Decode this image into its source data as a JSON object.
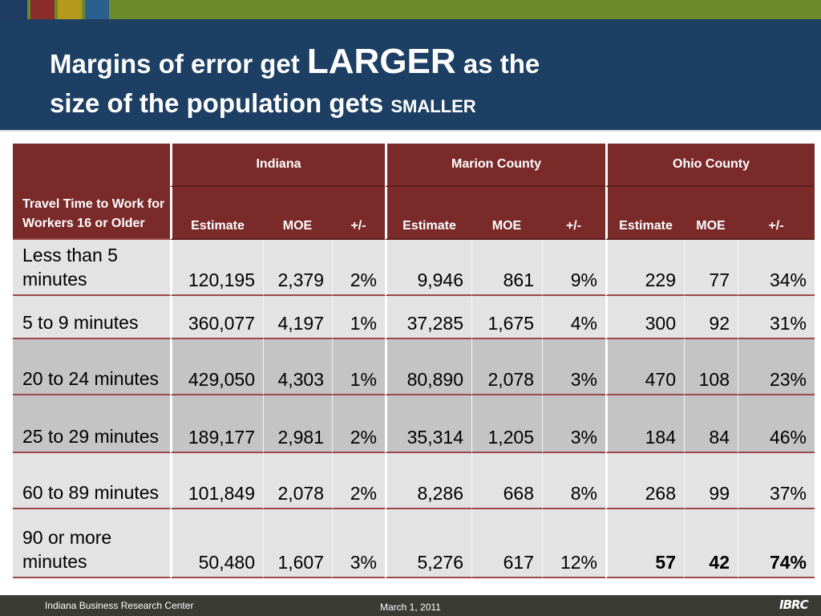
{
  "title": {
    "part1": "Margins of error get ",
    "emph_large": "LARGER",
    "part2": " as the",
    "part3": "size of the population gets ",
    "emph_small": "SMALLER"
  },
  "table": {
    "corner_label": "Travel Time to Work for Workers 16 or Older",
    "groups": [
      "Indiana",
      "Marion County",
      "Ohio County"
    ],
    "subheaders": [
      "Estimate",
      "MOE",
      "+/-"
    ],
    "rows": [
      {
        "label": "Less than 5 minutes",
        "shade": "light",
        "values": [
          "120,195",
          "2,379",
          "2%",
          "9,946",
          "861",
          "9%",
          "229",
          "77",
          "34%"
        ]
      },
      {
        "label": "5 to 9 minutes",
        "shade": "light",
        "values": [
          "360,077",
          "4,197",
          "1%",
          "37,285",
          "1,675",
          "4%",
          "300",
          "92",
          "31%"
        ]
      },
      {
        "label": "20 to 24 minutes",
        "shade": "dark",
        "values": [
          "429,050",
          "4,303",
          "1%",
          "80,890",
          "2,078",
          "3%",
          "470",
          "108",
          "23%"
        ]
      },
      {
        "label": "25 to 29 minutes",
        "shade": "dark",
        "values": [
          "189,177",
          "2,981",
          "2%",
          "35,314",
          "1,205",
          "3%",
          "184",
          "84",
          "46%"
        ]
      },
      {
        "label": "60 to 89 minutes",
        "shade": "light",
        "values": [
          "101,849",
          "2,078",
          "2%",
          "8,286",
          "668",
          "8%",
          "268",
          "99",
          "37%"
        ]
      },
      {
        "label": "90 or more minutes",
        "shade": "light",
        "values": [
          "50,480",
          "1,607",
          "3%",
          "5,276",
          "617",
          "12%",
          "57",
          "42",
          "74%"
        ]
      }
    ]
  },
  "footer": {
    "organization": "Indiana Business Research Center",
    "date": "March 1, 2011",
    "logo_text": "IBRC"
  },
  "colors": {
    "title_band": "#1c3f63",
    "header_fill": "#7b2a2a",
    "row_light": "#e3e3e3",
    "row_dark": "#c4c4c4",
    "footer_band": "#3b3b36"
  }
}
